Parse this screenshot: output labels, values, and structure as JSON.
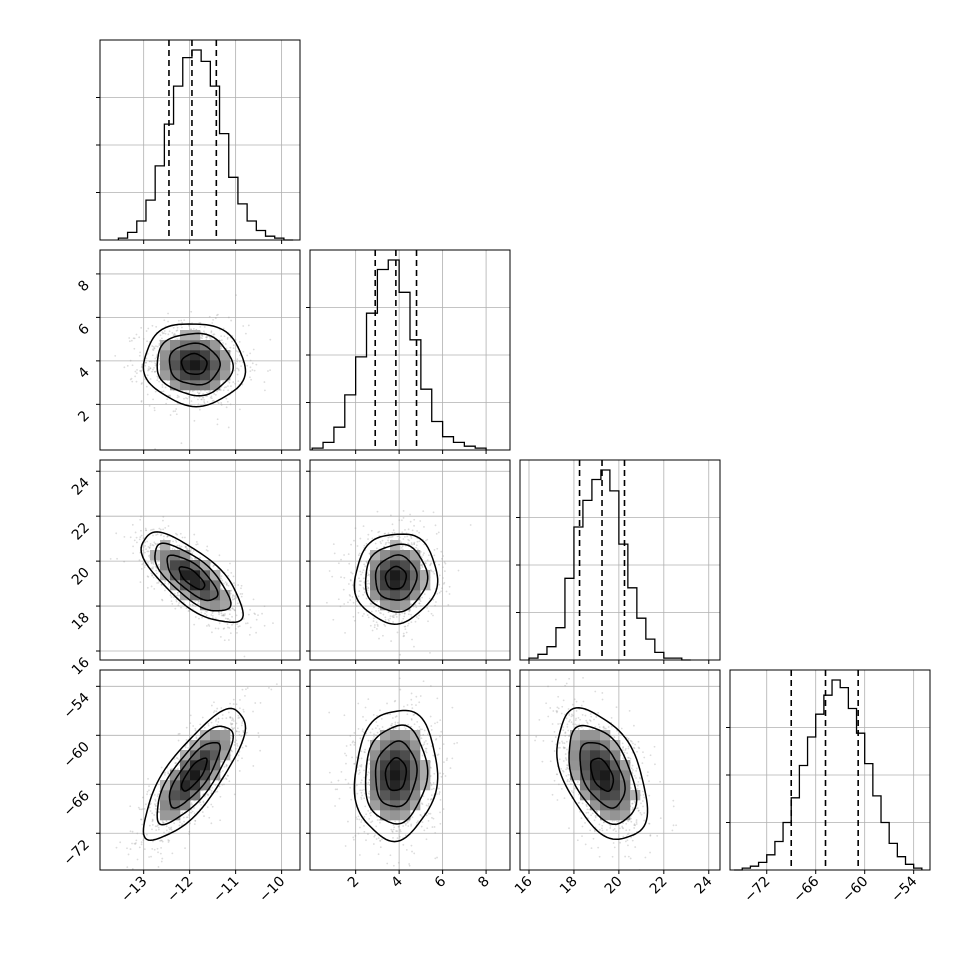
{
  "chart_data": {
    "type": "corner",
    "grid": true,
    "params": [
      {
        "index": 0,
        "range": [
          -13.95,
          -9.6
        ],
        "ticks": [
          -13,
          -12,
          -11,
          -10
        ],
        "tick_labels": [
          "−13",
          "−12",
          "−11",
          "−10"
        ],
        "quantiles": [
          -12.45,
          -11.95,
          -11.42
        ],
        "hist_edges": [
          -13.55,
          -13.35,
          -13.15,
          -12.95,
          -12.75,
          -12.55,
          -12.35,
          -12.15,
          -11.95,
          -11.75,
          -11.55,
          -11.35,
          -11.15,
          -10.95,
          -10.75,
          -10.55,
          -10.35,
          -10.15,
          -9.95,
          -9.75
        ],
        "hist_counts": [
          0.01,
          0.04,
          0.1,
          0.21,
          0.39,
          0.61,
          0.81,
          0.96,
          1.0,
          0.94,
          0.81,
          0.56,
          0.33,
          0.19,
          0.1,
          0.05,
          0.02,
          0.01,
          0.0
        ]
      },
      {
        "index": 1,
        "range": [
          -0.1,
          9.1
        ],
        "ticks": [
          2,
          4,
          6,
          8
        ],
        "tick_labels": [
          "2",
          "4",
          "6",
          "8"
        ],
        "quantiles": [
          2.9,
          3.85,
          4.8
        ],
        "hist_edges": [
          0.0,
          0.5,
          1.0,
          1.5,
          2.0,
          2.5,
          3.0,
          3.5,
          4.0,
          4.5,
          5.0,
          5.5,
          6.0,
          6.5,
          7.0,
          7.5,
          8.0
        ],
        "hist_counts": [
          0.01,
          0.04,
          0.12,
          0.29,
          0.49,
          0.72,
          0.95,
          1.0,
          0.83,
          0.58,
          0.32,
          0.15,
          0.07,
          0.04,
          0.02,
          0.01
        ]
      },
      {
        "index": 2,
        "range": [
          15.6,
          24.5
        ],
        "ticks": [
          16,
          18,
          20,
          22,
          24
        ],
        "tick_labels": [
          "16",
          "18",
          "20",
          "22",
          "24"
        ],
        "quantiles": [
          18.25,
          19.25,
          20.25
        ],
        "hist_edges": [
          16.0,
          16.4,
          16.8,
          17.2,
          17.6,
          18.0,
          18.4,
          18.8,
          19.2,
          19.6,
          20.0,
          20.4,
          20.8,
          21.2,
          21.6,
          22.0,
          22.4,
          22.8,
          23.2
        ],
        "hist_counts": [
          0.01,
          0.03,
          0.07,
          0.17,
          0.43,
          0.7,
          0.84,
          0.95,
          1.0,
          0.89,
          0.61,
          0.38,
          0.22,
          0.11,
          0.04,
          0.01,
          0.01,
          0.0
        ]
      },
      {
        "index": 3,
        "range": [
          -76.5,
          -52.0
        ],
        "ticks": [
          -72,
          -66,
          -60,
          -54
        ],
        "tick_labels": [
          "−72",
          "−66",
          "−60",
          "−54"
        ],
        "quantiles": [
          -69.0,
          -64.8,
          -60.8
        ],
        "hist_edges": [
          -76.0,
          -75.0,
          -74.0,
          -73.0,
          -72.0,
          -71.0,
          -70.0,
          -69.0,
          -68.0,
          -67.0,
          -66.0,
          -65.0,
          -64.0,
          -63.0,
          -62.0,
          -61.0,
          -60.0,
          -59.0,
          -58.0,
          -57.0,
          -56.0,
          -55.0,
          -54.0,
          -53.0
        ],
        "hist_counts": [
          0.0,
          0.01,
          0.02,
          0.04,
          0.08,
          0.15,
          0.25,
          0.38,
          0.55,
          0.7,
          0.82,
          0.92,
          1.0,
          0.96,
          0.85,
          0.72,
          0.56,
          0.39,
          0.25,
          0.14,
          0.07,
          0.03,
          0.01
        ]
      }
    ],
    "pairs": [
      {
        "x": 0,
        "y": 1,
        "mean": [
          -11.9,
          3.85
        ],
        "sd": [
          0.55,
          0.95
        ],
        "corr": -0.05
      },
      {
        "x": 0,
        "y": 2,
        "mean": [
          -11.95,
          19.25
        ],
        "sd": [
          0.55,
          1.0
        ],
        "corr": -0.72
      },
      {
        "x": 1,
        "y": 2,
        "mean": [
          3.85,
          19.25
        ],
        "sd": [
          0.95,
          1.0
        ],
        "corr": 0.05
      },
      {
        "x": 0,
        "y": 3,
        "mean": [
          -11.9,
          -64.8
        ],
        "sd": [
          0.55,
          4.0
        ],
        "corr": 0.78
      },
      {
        "x": 1,
        "y": 3,
        "mean": [
          3.85,
          -64.8
        ],
        "sd": [
          0.95,
          4.0
        ],
        "corr": 0.08
      },
      {
        "x": 2,
        "y": 3,
        "mean": [
          19.25,
          -64.8
        ],
        "sd": [
          1.0,
          4.0
        ],
        "corr": -0.45
      }
    ],
    "contour_sigma_levels": [
      0.5,
      1.0,
      1.5,
      2.0
    ],
    "colors": {
      "line": "#000000",
      "grid": "#b0b0b0",
      "points": "#9a9a9a",
      "frame": "#000000"
    }
  }
}
